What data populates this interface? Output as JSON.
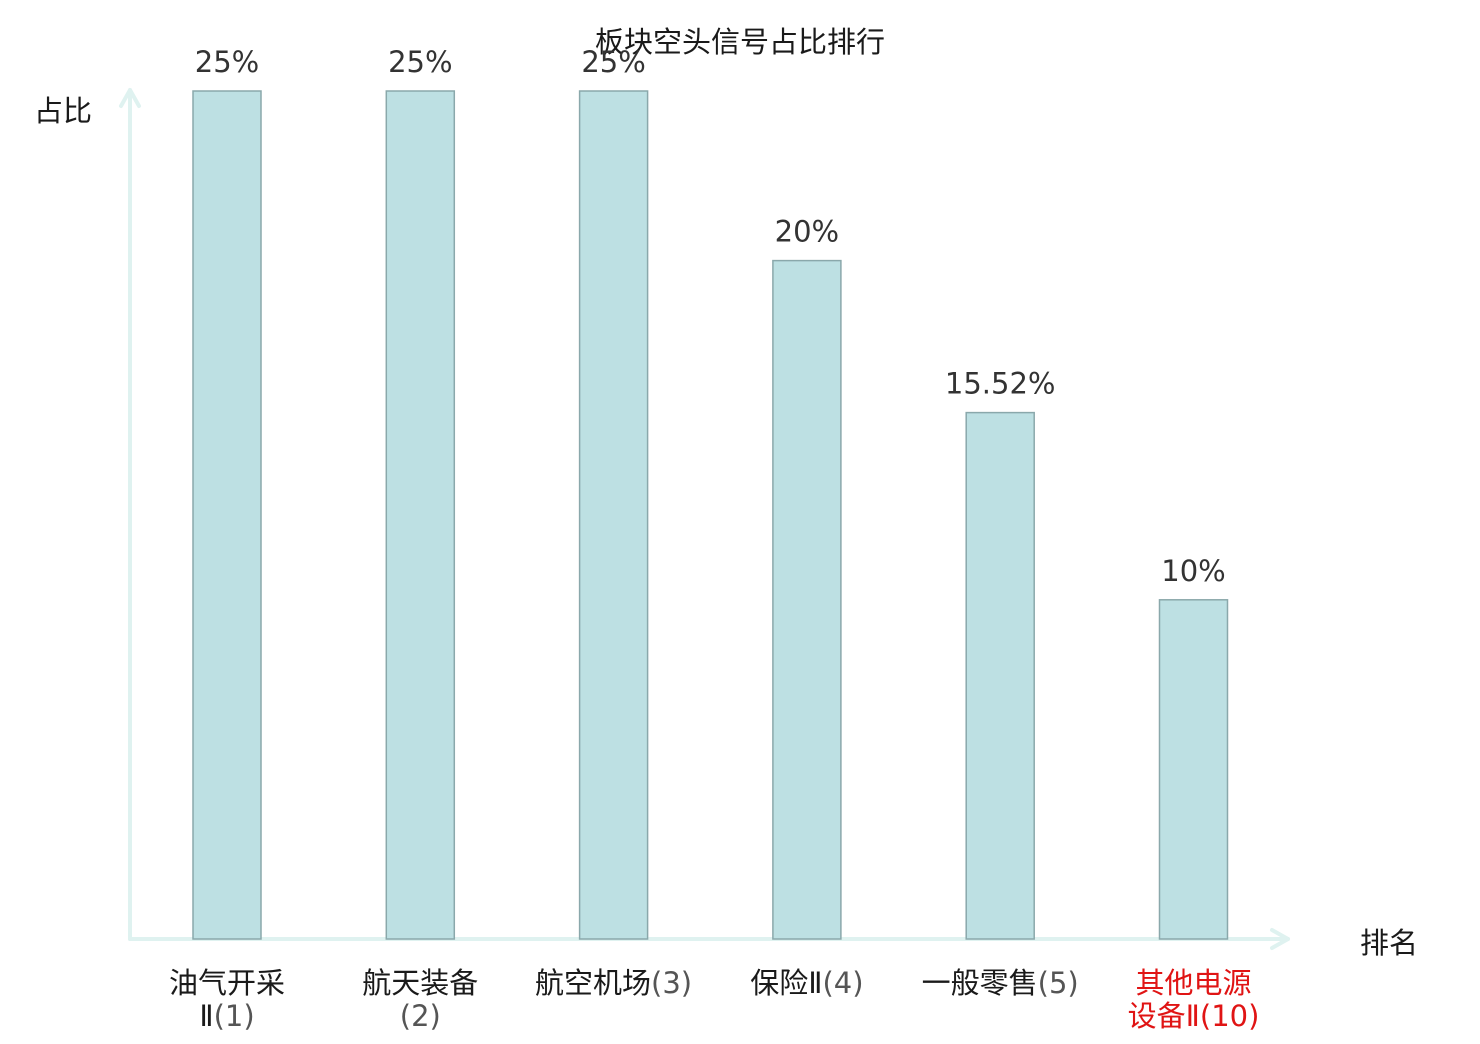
{
  "chart_data": {
    "type": "bar",
    "title": "板块空头信号占比排行",
    "xlabel": "排名",
    "ylabel": "占比",
    "ylim": [
      0,
      25
    ],
    "grid": false,
    "categories": [
      {
        "name_lines": [
          "油气开采",
          "Ⅱ"
        ],
        "rank": "(1)",
        "highlight": false
      },
      {
        "name_lines": [
          "航天装备",
          ""
        ],
        "rank": "(2)",
        "highlight": false
      },
      {
        "name_lines": [
          "航空机场"
        ],
        "rank": "(3)",
        "highlight": false
      },
      {
        "name_lines": [
          "保险Ⅱ"
        ],
        "rank": "(4)",
        "highlight": false
      },
      {
        "name_lines": [
          "一般零售"
        ],
        "rank": "(5)",
        "highlight": false
      },
      {
        "name_lines": [
          "其他电源",
          "设备Ⅱ"
        ],
        "rank": "(10)",
        "highlight": true
      }
    ],
    "values": [
      25,
      25,
      25,
      20,
      15.52,
      10
    ],
    "value_labels": [
      "25%",
      "25%",
      "25%",
      "20%",
      "15.52%",
      "10%"
    ]
  },
  "colors": {
    "bar_fill": "#bde0e3",
    "bar_stroke": "#8aa8ab",
    "axis": "#dff2f0",
    "highlight_label": "#e01414",
    "label": "#1a1a1a",
    "rank": "#555555",
    "value_label": "#333333"
  }
}
